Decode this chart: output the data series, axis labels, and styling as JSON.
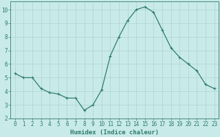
{
  "x": [
    0,
    1,
    2,
    3,
    4,
    5,
    6,
    7,
    8,
    9,
    10,
    11,
    12,
    13,
    14,
    15,
    16,
    17,
    18,
    19,
    20,
    21,
    22,
    23
  ],
  "y": [
    5.3,
    5.0,
    5.0,
    4.2,
    3.9,
    3.8,
    3.5,
    3.5,
    2.6,
    3.0,
    4.1,
    6.6,
    8.0,
    9.2,
    10.0,
    10.2,
    9.8,
    8.5,
    7.2,
    6.5,
    6.0,
    5.5,
    4.5,
    4.2
  ],
  "line_color": "#2d7a6e",
  "marker": "P",
  "markersize": 2.5,
  "linewidth": 0.9,
  "bg_color": "#c8eae8",
  "grid_color": "#aed4d0",
  "axis_bg": "#c8eae8",
  "xlabel": "Humidex (Indice chaleur)",
  "ylim": [
    2,
    10.6
  ],
  "xlim": [
    -0.5,
    23.5
  ],
  "yticks": [
    2,
    3,
    4,
    5,
    6,
    7,
    8,
    9,
    10
  ],
  "xticks": [
    0,
    1,
    2,
    3,
    4,
    5,
    6,
    7,
    8,
    9,
    10,
    11,
    12,
    13,
    14,
    15,
    16,
    17,
    18,
    19,
    20,
    21,
    22,
    23
  ],
  "tick_color": "#2d7a6e",
  "label_fontsize": 5.5,
  "xlabel_fontsize": 6.5
}
